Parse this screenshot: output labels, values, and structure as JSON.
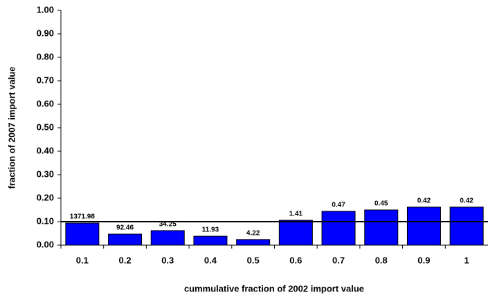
{
  "chart_data": {
    "type": "bar",
    "x_label": "cummulative fraction of 2002 import value",
    "y_label": "fraction of 2007 import value",
    "categories": [
      "0.1",
      "0.2",
      "0.3",
      "0.4",
      "0.5",
      "0.6",
      "0.7",
      "0.8",
      "0.9",
      "1"
    ],
    "values": [
      0.094,
      0.047,
      0.062,
      0.038,
      0.024,
      0.106,
      0.144,
      0.15,
      0.162,
      0.162
    ],
    "annotations": [
      "1371.98",
      "92.46",
      "34.25",
      "11.93",
      "4.22",
      "1.41",
      "0.47",
      "0.45",
      "0.42",
      "0.42"
    ],
    "color": "#0000ff",
    "reference_line": 0.1,
    "ylim": [
      0,
      1
    ],
    "yticks": [
      {
        "value": 0,
        "label": "0.00"
      },
      {
        "value": 0.1,
        "label": "0.10"
      },
      {
        "value": 0.2,
        "label": "0.20"
      },
      {
        "value": 0.3,
        "label": "0.30"
      },
      {
        "value": 0.4,
        "label": "0.40"
      },
      {
        "value": 0.5,
        "label": "0.50"
      },
      {
        "value": 0.6,
        "label": "0.60"
      },
      {
        "value": 0.7,
        "label": "0.70"
      },
      {
        "value": 0.8,
        "label": "0.80"
      },
      {
        "value": 0.9,
        "label": "0.90"
      },
      {
        "value": 1,
        "label": "1.00"
      }
    ],
    "grid": false
  }
}
